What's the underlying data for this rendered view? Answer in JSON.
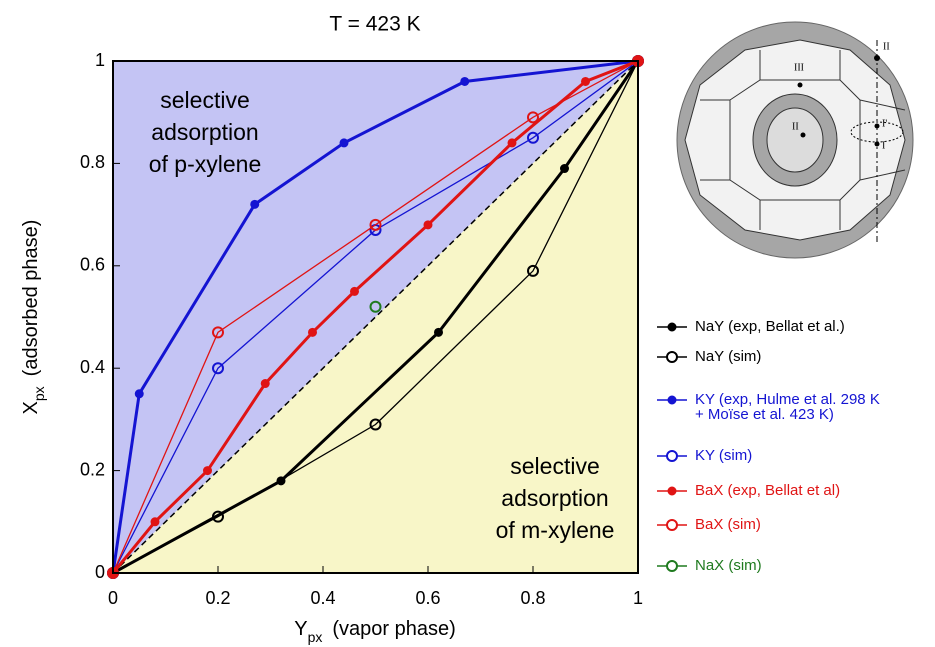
{
  "chart_data": {
    "type": "line",
    "title": "T = 423 K",
    "x_label_symbol": "Y",
    "x_label_subscript": "px",
    "x_label_text": "(vapor phase)",
    "y_label_symbol": "X",
    "y_label_subscript": "px",
    "y_label_text": "(adsorbed phase)",
    "xlim": [
      0,
      1
    ],
    "ylim": [
      0,
      1
    ],
    "xticks": [
      0,
      0.2,
      0.4,
      0.6,
      0.8,
      1
    ],
    "yticks": [
      0,
      0.2,
      0.4,
      0.6,
      0.8,
      1
    ],
    "upper_region_color": "#c4c4f4",
    "lower_region_color": "#f8f6c8",
    "annotations": [
      "selective\nadsorption\nof p-xylene",
      "selective\nadsorption\nof m-xylene"
    ],
    "series": [
      {
        "name": "NaY (exp, Bellat et al.)",
        "color": "#000000",
        "marker": "filled",
        "line_width": 3,
        "x": [
          0,
          0.32,
          0.62,
          0.86,
          1
        ],
        "values": [
          0,
          0.18,
          0.47,
          0.79,
          1
        ]
      },
      {
        "name": "NaY (sim)",
        "color": "#000000",
        "marker": "open",
        "line_width": 1.3,
        "x": [
          0,
          0.2,
          0.5,
          0.8,
          1
        ],
        "values": [
          0,
          0.11,
          0.29,
          0.59,
          1
        ]
      },
      {
        "name": "KY (exp, Hulme et al. 298 K\n+ Moïse et al. 423 K)",
        "color": "#1414d2",
        "marker": "filled",
        "line_width": 3,
        "x": [
          0,
          0.05,
          0.27,
          0.44,
          0.67,
          1
        ],
        "values": [
          0,
          0.35,
          0.72,
          0.84,
          0.96,
          1
        ]
      },
      {
        "name": "KY (sim)",
        "color": "#1414d2",
        "marker": "open",
        "line_width": 1.3,
        "x": [
          0,
          0.2,
          0.5,
          0.8,
          1
        ],
        "values": [
          0,
          0.4,
          0.67,
          0.85,
          1
        ]
      },
      {
        "name": "BaX (exp, Bellat et al)",
        "color": "#e01414",
        "marker": "filled",
        "line_width": 3,
        "x": [
          0,
          0.08,
          0.18,
          0.29,
          0.38,
          0.46,
          0.6,
          0.76,
          0.9,
          1
        ],
        "values": [
          0,
          0.1,
          0.2,
          0.37,
          0.47,
          0.55,
          0.68,
          0.84,
          0.96,
          1
        ]
      },
      {
        "name": "BaX (sim)",
        "color": "#e01414",
        "marker": "open",
        "line_width": 1.3,
        "x": [
          0,
          0.2,
          0.5,
          0.8,
          1
        ],
        "values": [
          0,
          0.47,
          0.68,
          0.89,
          1
        ]
      },
      {
        "name": "NaX (sim)",
        "color": "#1f7a1f",
        "marker": "open",
        "line_width": 1.3,
        "x": [
          0.5
        ],
        "values": [
          0.52
        ]
      }
    ],
    "inset_labels": [
      "II",
      "III",
      "II",
      "I'",
      "I"
    ]
  }
}
